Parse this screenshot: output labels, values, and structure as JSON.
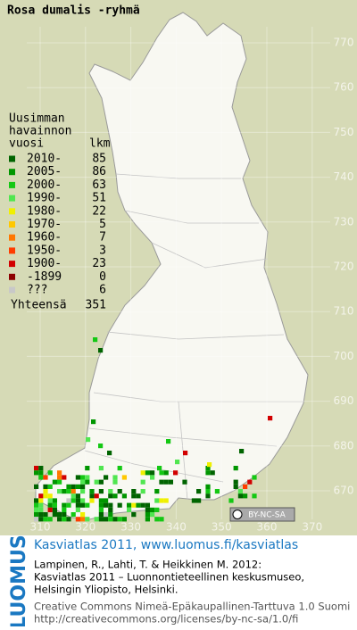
{
  "title": "Rosa dumalis -ryhmä",
  "legend": {
    "heading": [
      "Uusimman",
      "havainnon",
      "vuosi"
    ],
    "count_heading": "lkm",
    "rows": [
      {
        "label": "2010-",
        "count": 85,
        "color": "#006400"
      },
      {
        "label": "2005-",
        "count": 86,
        "color": "#009600"
      },
      {
        "label": "2000-",
        "count": 63,
        "color": "#14c814"
      },
      {
        "label": "1990-",
        "count": 51,
        "color": "#50e650"
      },
      {
        "label": "1980-",
        "count": 22,
        "color": "#f0f000"
      },
      {
        "label": "1970-",
        "count": 5,
        "color": "#ffc800"
      },
      {
        "label": "1960-",
        "count": 7,
        "color": "#ff7800"
      },
      {
        "label": "1950-",
        "count": 3,
        "color": "#ff3c00"
      },
      {
        "label": "1900-",
        "count": 23,
        "color": "#d20000"
      },
      {
        "label": "-1899",
        "count": 0,
        "color": "#8c0000"
      },
      {
        "label": "???",
        "count": 6,
        "color": "#c8c8c8"
      }
    ],
    "total_label": "Yhteensä",
    "total": 351
  },
  "axes": {
    "y_ticks": [
      770,
      760,
      750,
      740,
      730,
      720,
      710,
      700,
      690,
      680,
      670
    ],
    "x_ticks": [
      310,
      320,
      330,
      340,
      350,
      360,
      370
    ]
  },
  "license_badge": "BY-NC-SA",
  "footer": {
    "brand": "LUOMUS",
    "link": "Kasviatlas 2011, www.luomus.fi/kasviatlas",
    "citation": [
      "Lampinen, R., Lahti, T. & Heikkinen M. 2012:",
      "Kasviatlas 2011 – Luonnontieteellinen keskusmuseo,",
      "Helsingin Yliopisto, Helsinki."
    ],
    "license": [
      "Creative Commons Nimeä-Epäkaupallinen-Tarttuva 1.0 Suomi",
      "http://creativecommons.org/licenses/by-nc-sa/1.0/fi"
    ]
  }
}
